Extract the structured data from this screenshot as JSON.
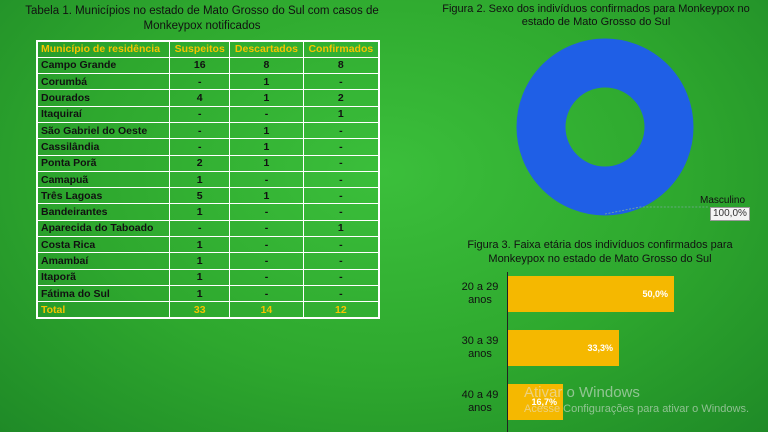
{
  "table1": {
    "caption": "Tabela 1. Municípios no estado de Mato Grosso do Sul com casos de Monkeypox notificados",
    "headers": [
      "Município de residência",
      "Suspeitos",
      "Descartados",
      "Confirmados"
    ],
    "rows": [
      [
        "Campo Grande",
        "16",
        "8",
        "8"
      ],
      [
        "Corumbá",
        "-",
        "1",
        "-"
      ],
      [
        "Dourados",
        "4",
        "1",
        "2"
      ],
      [
        "Itaquiraí",
        "-",
        "-",
        "1"
      ],
      [
        "São Gabriel do Oeste",
        "-",
        "1",
        "-"
      ],
      [
        "Cassilândia",
        "-",
        "1",
        "-"
      ],
      [
        "Ponta Porã",
        "2",
        "1",
        "-"
      ],
      [
        "Camapuã",
        "1",
        "-",
        "-"
      ],
      [
        "Três Lagoas",
        "5",
        "1",
        "-"
      ],
      [
        "Bandeirantes",
        "1",
        "-",
        "-"
      ],
      [
        "Aparecida do Taboado",
        "-",
        "-",
        "1"
      ],
      [
        "Costa Rica",
        "1",
        "-",
        "-"
      ],
      [
        "Amambaí",
        "1",
        "-",
        "-"
      ],
      [
        "Itaporã",
        "1",
        "-",
        "-"
      ],
      [
        "Fátima do Sul",
        "1",
        "-",
        "-"
      ]
    ],
    "total": [
      "Total",
      "33",
      "14",
      "12"
    ]
  },
  "figure2": {
    "caption": "Figura 2. Sexo dos indivíduos confirmados para Monkeypox no estado de Mato Grosso do Sul",
    "slice_label": "Masculino",
    "slice_value": "100,0%"
  },
  "figure3": {
    "caption": "Figura 3. Faixa etária dos indivíduos confirmados para Monkeypox no estado de Mato Grosso do Sul",
    "bars": [
      {
        "line1": "20 a 29",
        "line2": "anos",
        "value": "50,0%"
      },
      {
        "line1": "30 a 39",
        "line2": "anos",
        "value": "33,3%"
      },
      {
        "line1": "40 a 49",
        "line2": "anos",
        "value": "16,7%"
      }
    ]
  },
  "watermark": {
    "title": "Ativar o Windows",
    "subtitle": "Acesse Configurações para ativar o Windows."
  },
  "colors": {
    "background": "#2ea82e",
    "header_text": "#f5c400",
    "donut": "#1f5fe6",
    "bar": "#f5b800"
  },
  "chart_data": [
    {
      "type": "pie",
      "title": "Figura 2. Sexo dos indivíduos confirmados para Monkeypox no estado de Mato Grosso do Sul",
      "categories": [
        "Masculino"
      ],
      "values": [
        100.0
      ]
    },
    {
      "type": "bar",
      "title": "Figura 3. Faixa etária dos indivíduos confirmados para Monkeypox no estado de Mato Grosso do Sul",
      "categories": [
        "20 a 29 anos",
        "30 a 39 anos",
        "40 a 49 anos"
      ],
      "values": [
        50.0,
        33.3,
        16.7
      ],
      "orientation": "horizontal",
      "xlim": [
        0,
        50
      ]
    }
  ]
}
